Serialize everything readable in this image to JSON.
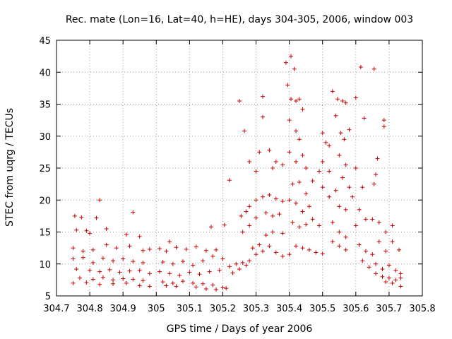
{
  "chart_data": {
    "type": "scatter",
    "title": "Rec. mate (Lon=16, Lat=40, h=HE), days 304-305, 2006, window 003",
    "xlabel": "GPS time / Days of year 2006",
    "ylabel": "STEC from uqrg / TECUs",
    "xlim": [
      304.7,
      305.8
    ],
    "ylim": [
      5,
      45
    ],
    "xticks": [
      "304.7",
      "304.8",
      "304.9",
      "305",
      "305.1",
      "305.2",
      "305.3",
      "305.4",
      "305.5",
      "305.6",
      "305.7",
      "305.8"
    ],
    "yticks": [
      "5",
      "10",
      "15",
      "20",
      "25",
      "30",
      "35",
      "40",
      "45"
    ],
    "grid": true,
    "marker": "+",
    "color": "#cc0000",
    "series": [
      {
        "points": [
          [
            304.755,
            17.5
          ],
          [
            304.775,
            17.3
          ],
          [
            304.82,
            17.2
          ],
          [
            304.83,
            20.0
          ],
          [
            304.93,
            18.1
          ],
          [
            304.76,
            15.3
          ],
          [
            304.79,
            15.2
          ],
          [
            304.8,
            14.8
          ],
          [
            304.85,
            15.5
          ],
          [
            304.91,
            14.6
          ],
          [
            304.95,
            14.3
          ],
          [
            304.75,
            12.5
          ],
          [
            304.78,
            12.0
          ],
          [
            304.81,
            12.2
          ],
          [
            304.85,
            13.0
          ],
          [
            304.88,
            12.5
          ],
          [
            304.92,
            12.8
          ],
          [
            304.96,
            12.1
          ],
          [
            304.98,
            12.3
          ],
          [
            304.75,
            10.8
          ],
          [
            304.78,
            11.0
          ],
          [
            304.81,
            10.2
          ],
          [
            304.84,
            10.9
          ],
          [
            304.87,
            10.5
          ],
          [
            304.9,
            10.8
          ],
          [
            304.93,
            10.4
          ],
          [
            304.96,
            10.2
          ],
          [
            304.76,
            9.2
          ],
          [
            304.8,
            9.0
          ],
          [
            304.83,
            8.8
          ],
          [
            304.86,
            9.1
          ],
          [
            304.89,
            8.7
          ],
          [
            304.92,
            8.9
          ],
          [
            304.95,
            9.0
          ],
          [
            304.98,
            8.5
          ],
          [
            304.77,
            7.8
          ],
          [
            304.81,
            7.6
          ],
          [
            304.84,
            7.9
          ],
          [
            304.87,
            7.5
          ],
          [
            304.9,
            7.7
          ],
          [
            304.93,
            7.6
          ],
          [
            304.96,
            7.4
          ],
          [
            304.75,
            7.0
          ],
          [
            304.79,
            7.1
          ],
          [
            304.83,
            6.8
          ],
          [
            304.87,
            6.9
          ],
          [
            304.91,
            7.0
          ],
          [
            304.95,
            6.6
          ],
          [
            304.98,
            6.5
          ],
          [
            305.01,
            12.4
          ],
          [
            305.03,
            12.0
          ],
          [
            305.04,
            13.5
          ],
          [
            305.06,
            12.6
          ],
          [
            305.09,
            12.3
          ],
          [
            305.12,
            12.7
          ],
          [
            305.15,
            12.1
          ],
          [
            305.18,
            12.2
          ],
          [
            305.02,
            10.3
          ],
          [
            305.05,
            10.0
          ],
          [
            305.08,
            10.4
          ],
          [
            305.11,
            9.8
          ],
          [
            305.14,
            10.5
          ],
          [
            305.17,
            11.2
          ],
          [
            305.2,
            10.8
          ],
          [
            305.01,
            8.8
          ],
          [
            305.04,
            8.5
          ],
          [
            305.07,
            8.2
          ],
          [
            305.1,
            8.7
          ],
          [
            305.13,
            8.4
          ],
          [
            305.16,
            8.8
          ],
          [
            305.19,
            9.0
          ],
          [
            305.02,
            7.2
          ],
          [
            305.05,
            7.0
          ],
          [
            305.08,
            7.3
          ],
          [
            305.11,
            7.0
          ],
          [
            305.14,
            6.9
          ],
          [
            305.17,
            6.7
          ],
          [
            305.2,
            6.3
          ],
          [
            305.03,
            6.6
          ],
          [
            305.06,
            6.5
          ],
          [
            305.12,
            6.4
          ],
          [
            305.15,
            6.1
          ],
          [
            305.18,
            6.0
          ],
          [
            305.21,
            6.2
          ],
          [
            305.165,
            15.8
          ],
          [
            305.205,
            16.1
          ],
          [
            305.22,
            23.1
          ],
          [
            305.22,
            9.6
          ],
          [
            305.24,
            10.0
          ],
          [
            305.26,
            10.2
          ],
          [
            305.28,
            10.5
          ],
          [
            305.23,
            8.6
          ],
          [
            305.25,
            9.2
          ],
          [
            305.27,
            9.8
          ],
          [
            305.25,
            35.5
          ],
          [
            305.265,
            30.8
          ],
          [
            305.28,
            26.0
          ],
          [
            305.255,
            17.5
          ],
          [
            305.27,
            18.2
          ],
          [
            305.28,
            19.0
          ],
          [
            305.3,
            20.0
          ],
          [
            305.32,
            20.5
          ],
          [
            305.34,
            20.8
          ],
          [
            305.36,
            20.2
          ],
          [
            305.38,
            19.8
          ],
          [
            305.4,
            20.0
          ],
          [
            305.26,
            15.0
          ],
          [
            305.28,
            16.0
          ],
          [
            305.3,
            17.2
          ],
          [
            305.33,
            18.0
          ],
          [
            305.35,
            17.5
          ],
          [
            305.37,
            17.8
          ],
          [
            305.29,
            12.5
          ],
          [
            305.31,
            13.0
          ],
          [
            305.33,
            14.5
          ],
          [
            305.35,
            15.0
          ],
          [
            305.38,
            14.8
          ],
          [
            305.3,
            11.5
          ],
          [
            305.32,
            12.0
          ],
          [
            305.34,
            12.8
          ],
          [
            305.36,
            11.8
          ],
          [
            305.38,
            11.2
          ],
          [
            305.4,
            11.5
          ],
          [
            305.3,
            24.5
          ],
          [
            305.31,
            27.5
          ],
          [
            305.32,
            33.0
          ],
          [
            305.32,
            36.2
          ],
          [
            305.34,
            27.8
          ],
          [
            305.35,
            25.0
          ],
          [
            305.36,
            26.0
          ],
          [
            305.38,
            25.5
          ],
          [
            305.39,
            41.5
          ],
          [
            305.405,
            42.5
          ],
          [
            305.415,
            40.5
          ],
          [
            305.395,
            38.0
          ],
          [
            305.405,
            35.8
          ],
          [
            305.42,
            35.5
          ],
          [
            305.43,
            35.8
          ],
          [
            305.44,
            34.2
          ],
          [
            305.4,
            32.5
          ],
          [
            305.42,
            30.8
          ],
          [
            305.43,
            29.5
          ],
          [
            305.4,
            27.5
          ],
          [
            305.42,
            26.0
          ],
          [
            305.44,
            27.0
          ],
          [
            305.45,
            25.0
          ],
          [
            305.41,
            22.5
          ],
          [
            305.43,
            22.8
          ],
          [
            305.45,
            21.0
          ],
          [
            305.47,
            23.0
          ],
          [
            305.49,
            24.5
          ],
          [
            305.42,
            19.5
          ],
          [
            305.44,
            18.2
          ],
          [
            305.46,
            19.0
          ],
          [
            305.41,
            16.5
          ],
          [
            305.43,
            15.8
          ],
          [
            305.45,
            16.2
          ],
          [
            305.47,
            17.0
          ],
          [
            305.49,
            16.0
          ],
          [
            305.42,
            12.8
          ],
          [
            305.44,
            12.5
          ],
          [
            305.46,
            12.2
          ],
          [
            305.48,
            11.8
          ],
          [
            305.5,
            11.6
          ],
          [
            305.5,
            30.5
          ],
          [
            305.51,
            29.0
          ],
          [
            305.52,
            28.5
          ],
          [
            305.5,
            26.0
          ],
          [
            305.52,
            24.5
          ],
          [
            305.5,
            22.0
          ],
          [
            305.52,
            20.5
          ],
          [
            305.54,
            21.5
          ],
          [
            305.53,
            37.0
          ],
          [
            305.545,
            35.8
          ],
          [
            305.56,
            35.5
          ],
          [
            305.57,
            35.2
          ],
          [
            305.54,
            33.2
          ],
          [
            305.555,
            30.5
          ],
          [
            305.565,
            29.5
          ],
          [
            305.58,
            31.0
          ],
          [
            305.55,
            27.0
          ],
          [
            305.57,
            25.5
          ],
          [
            305.59,
            20.5
          ],
          [
            305.56,
            23.5
          ],
          [
            305.58,
            22.0
          ],
          [
            305.55,
            19.0
          ],
          [
            305.57,
            18.5
          ],
          [
            305.53,
            16.5
          ],
          [
            305.55,
            15.0
          ],
          [
            305.57,
            14.2
          ],
          [
            305.53,
            13.5
          ],
          [
            305.55,
            12.8
          ],
          [
            305.57,
            12.2
          ],
          [
            305.6,
            36.0
          ],
          [
            305.615,
            40.8
          ],
          [
            305.625,
            32.8
          ],
          [
            305.6,
            25.0
          ],
          [
            305.62,
            22.0
          ],
          [
            305.61,
            18.5
          ],
          [
            305.63,
            17.0
          ],
          [
            305.6,
            16.0
          ],
          [
            305.655,
            40.5
          ],
          [
            305.665,
            26.5
          ],
          [
            305.66,
            24.0
          ],
          [
            305.655,
            22.5
          ],
          [
            305.65,
            17.0
          ],
          [
            305.67,
            16.5
          ],
          [
            305.685,
            32.5
          ],
          [
            305.685,
            31.5
          ],
          [
            305.69,
            15.0
          ],
          [
            305.71,
            16.0
          ],
          [
            305.61,
            13.0
          ],
          [
            305.63,
            12.0
          ],
          [
            305.65,
            11.5
          ],
          [
            305.67,
            13.5
          ],
          [
            305.69,
            12.0
          ],
          [
            305.71,
            13.5
          ],
          [
            305.73,
            12.2
          ],
          [
            305.62,
            10.5
          ],
          [
            305.64,
            9.5
          ],
          [
            305.66,
            10.0
          ],
          [
            305.68,
            9.2
          ],
          [
            305.7,
            9.8
          ],
          [
            305.72,
            9.0
          ],
          [
            305.735,
            8.5
          ],
          [
            305.66,
            8.5
          ],
          [
            305.68,
            8.0
          ],
          [
            305.7,
            7.8
          ],
          [
            305.72,
            7.5
          ],
          [
            305.735,
            7.8
          ],
          [
            305.69,
            7.2
          ],
          [
            305.71,
            7.0
          ],
          [
            305.735,
            6.5
          ]
        ]
      }
    ]
  }
}
